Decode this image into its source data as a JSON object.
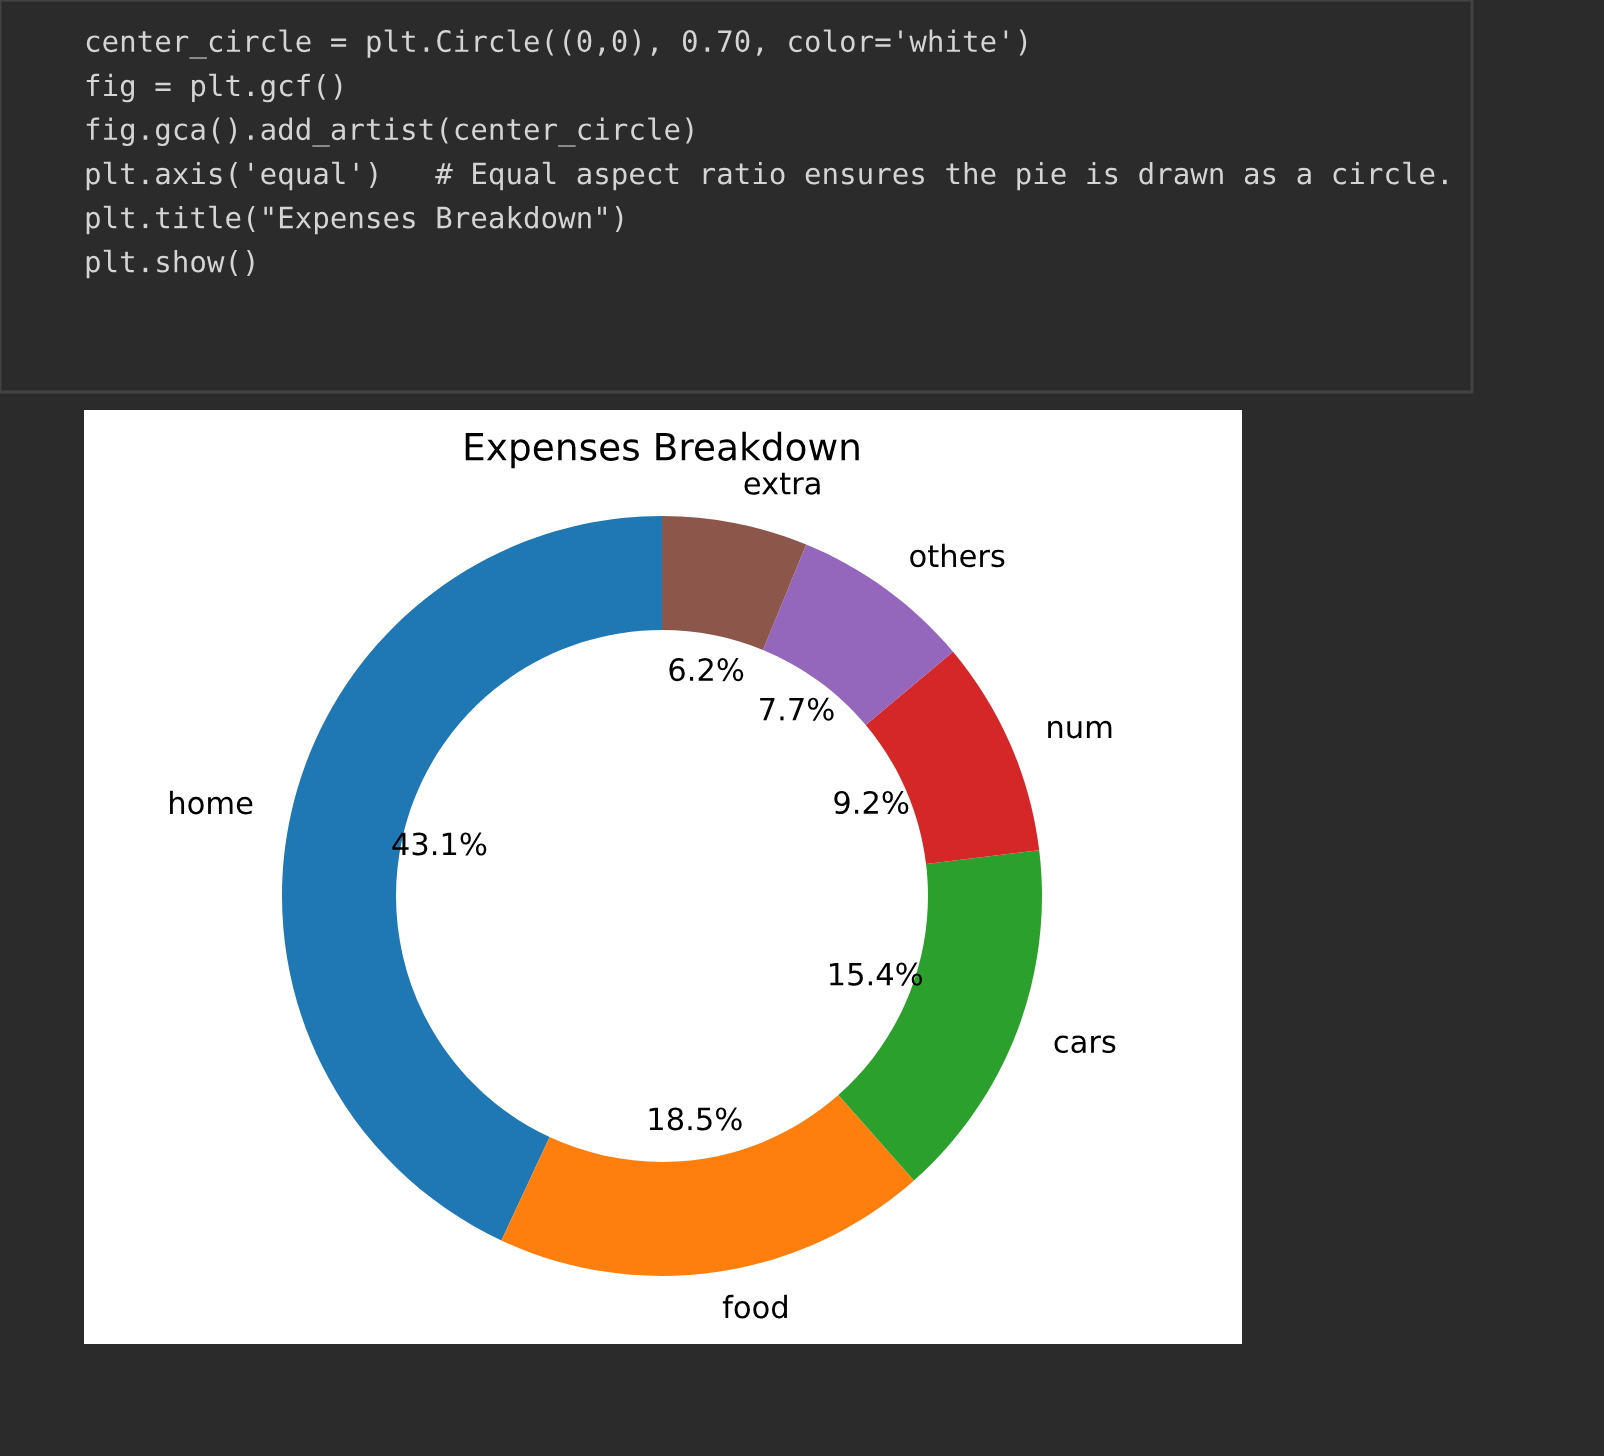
{
  "chart_data": {
    "type": "donut",
    "title": "Expenses Breakdown",
    "categories": [
      "home",
      "food",
      "cars",
      "num",
      "others",
      "extra"
    ],
    "values": [
      43.1,
      18.5,
      15.4,
      9.2,
      7.7,
      6.2
    ],
    "value_labels": [
      "43.1%",
      "18.5%",
      "15.4%",
      "9.2%",
      "7.7%",
      "6.2%"
    ],
    "colors": [
      "#1f77b4",
      "#ff7f0e",
      "#2ca02c",
      "#d62728",
      "#9467bd",
      "#8c564b"
    ],
    "annotations": [
      "center_circle = plt.Circle((0,0), 0.70, color='white')",
      "fig = plt.gcf()",
      "fig.gca().add_artist(center_circle)",
      "plt.axis('equal')   # Equal aspect ratio ensures the pie is drawn as a circle.",
      "plt.title(\"Expenses Breakdown\")",
      "plt.show()"
    ]
  }
}
